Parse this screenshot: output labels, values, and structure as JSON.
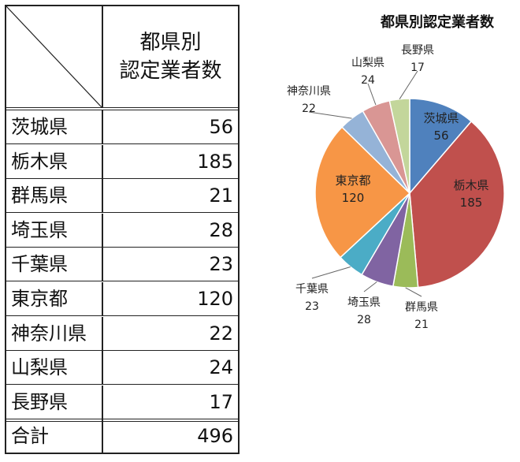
{
  "table": {
    "header": [
      "都県別",
      "認定業者数"
    ],
    "rows": [
      {
        "name": "茨城県",
        "value": "56"
      },
      {
        "name": "栃木県",
        "value": "185"
      },
      {
        "name": "群馬県",
        "value": "21"
      },
      {
        "name": "埼玉県",
        "value": "28"
      },
      {
        "name": "千葉県",
        "value": "23"
      },
      {
        "name": "東京都",
        "value": "120"
      },
      {
        "name": "神奈川県",
        "value": "22"
      },
      {
        "name": "山梨県",
        "value": "24"
      },
      {
        "name": "長野県",
        "value": "17"
      }
    ],
    "total_label": "合計",
    "total_value": "496"
  },
  "chart_data": {
    "type": "pie",
    "title": "都県別認定業者数",
    "categories": [
      "茨城県",
      "栃木県",
      "群馬県",
      "埼玉県",
      "千葉県",
      "東京都",
      "神奈川県",
      "山梨県",
      "長野県"
    ],
    "values": [
      56,
      185,
      21,
      28,
      23,
      120,
      22,
      24,
      17
    ],
    "colors": [
      "#4f81bd",
      "#c0504d",
      "#9bbb59",
      "#8064a2",
      "#4bacc6",
      "#f79646",
      "#95b3d7",
      "#d99694",
      "#c3d69b"
    ],
    "start": "12 o'clock, clockwise",
    "legend": "none"
  }
}
